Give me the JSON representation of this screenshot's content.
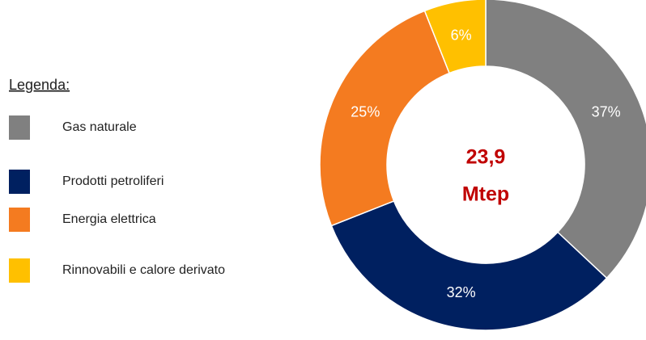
{
  "chart_data": {
    "type": "donut",
    "legend_title": "Legenda:",
    "center_text": [
      "23,9",
      "Mtep"
    ],
    "categories": [
      "Gas naturale",
      "Prodotti petroliferi",
      "Energia elettrica",
      "Rinnovabili e calore derivato"
    ],
    "values": [
      37,
      32,
      25,
      6
    ],
    "value_labels": [
      "37%",
      "32%",
      "25%",
      "6%"
    ],
    "colors": [
      "#808080",
      "#002060",
      "#f47b20",
      "#ffc000"
    ],
    "legend": "left"
  }
}
